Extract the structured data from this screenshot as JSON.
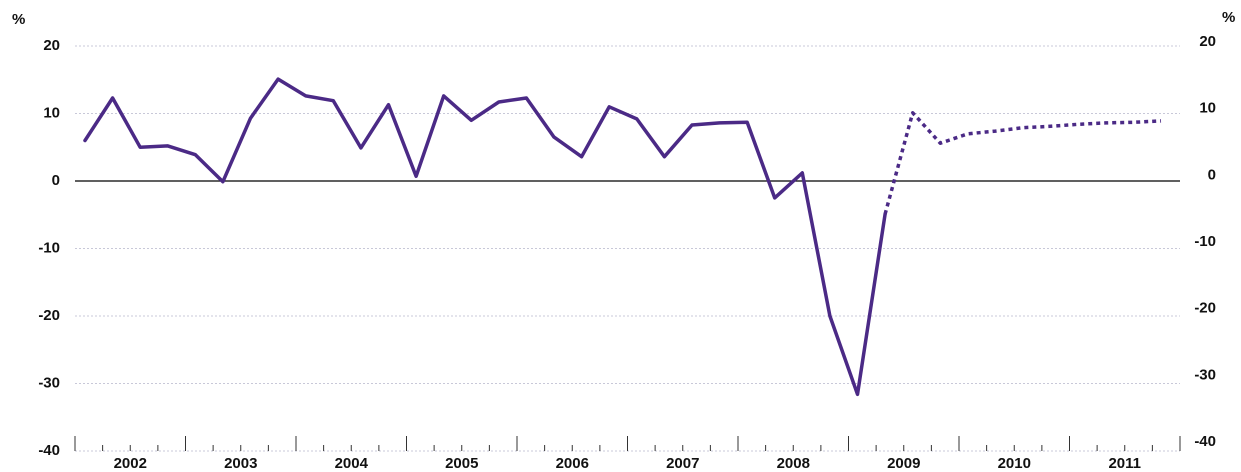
{
  "chart_data": {
    "type": "line",
    "ylabel": "%",
    "y2label": "%",
    "categories": [
      "2002",
      null,
      null,
      null,
      "2003",
      null,
      null,
      null,
      "2004",
      null,
      null,
      null,
      "2005",
      null,
      null,
      null,
      "2006",
      null,
      null,
      null,
      "2007",
      null,
      null,
      null,
      "2008",
      null,
      null,
      null,
      "2009",
      null,
      null,
      null,
      "2010",
      null,
      null,
      null,
      "2011",
      null,
      null,
      null
    ],
    "series": [
      {
        "color": "#4b2a86",
        "style": "solid",
        "values": [
          6.0,
          12.3,
          5.0,
          5.2,
          3.9,
          -0.1,
          9.3,
          15.1,
          12.6,
          11.9,
          4.9,
          11.3,
          0.7,
          12.6,
          9.0,
          11.7,
          12.3,
          6.5,
          3.6,
          11.0,
          9.2,
          3.6,
          8.3,
          8.6,
          8.7,
          -2.5,
          1.2,
          -20.0,
          -31.6,
          -4.9,
          null,
          null,
          null,
          null,
          null,
          null,
          null,
          null,
          null,
          null
        ]
      },
      {
        "color": "#4b2a86",
        "style": "dotted",
        "values": [
          null,
          null,
          null,
          null,
          null,
          null,
          null,
          null,
          null,
          null,
          null,
          null,
          null,
          null,
          null,
          null,
          null,
          null,
          null,
          null,
          null,
          null,
          null,
          null,
          null,
          null,
          null,
          null,
          null,
          -4.9,
          10.1,
          5.6,
          7.0,
          7.4,
          7.9,
          8.1,
          8.4,
          8.6,
          8.7,
          8.9
        ]
      }
    ],
    "ylim": [
      -40,
      20
    ],
    "yticks": [
      -40,
      -30,
      -20,
      -10,
      0,
      10,
      20
    ],
    "y2lim": [
      -40,
      20
    ],
    "y2ticks": [
      -40,
      -30,
      -20,
      -10,
      0,
      10,
      20
    ],
    "grid": true
  }
}
